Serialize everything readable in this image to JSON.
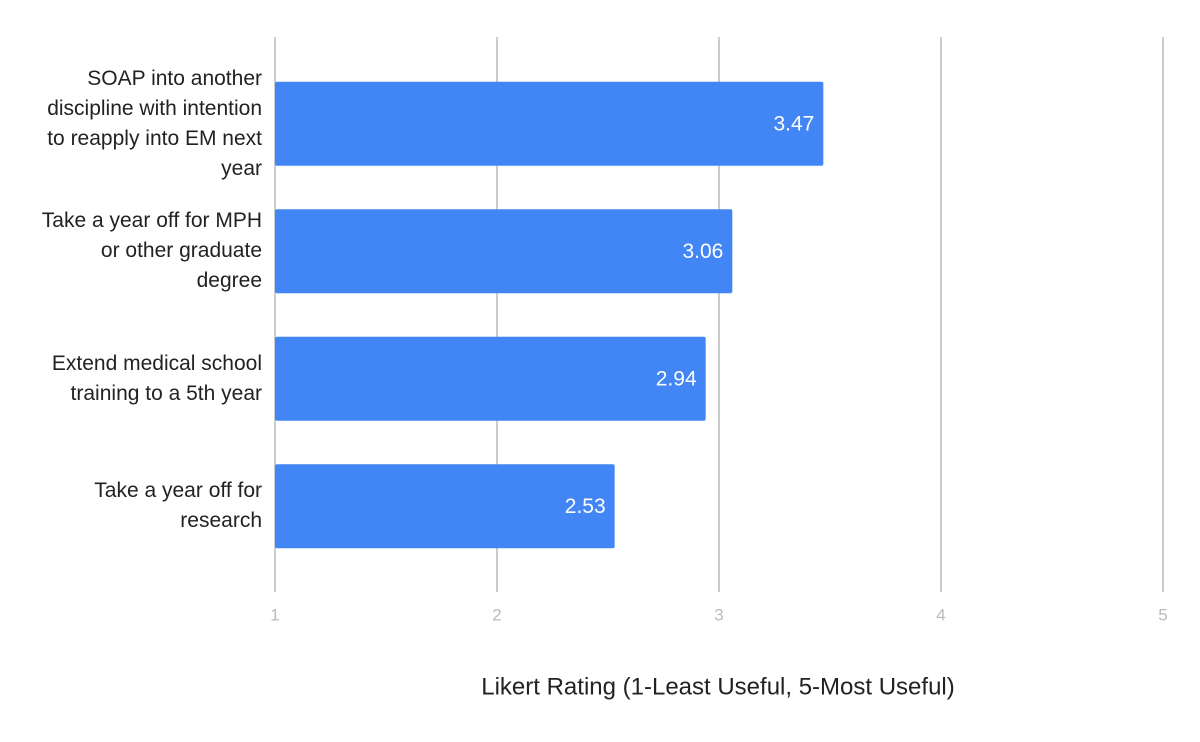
{
  "chart_data": {
    "type": "bar",
    "orientation": "horizontal",
    "x_label": "Likert Rating (1-Least Useful, 5-Most Useful)",
    "categories": [
      "SOAP into another discipline with intention to reapply into EM next year",
      "Take a year off for MPH or other graduate degree",
      "Extend medical school training to a 5th year",
      "Take a year off for research"
    ],
    "values": [
      3.47,
      3.06,
      2.94,
      2.53
    ],
    "color": "#4285f4",
    "xlim": [
      1,
      5
    ],
    "xticks": [
      1,
      2,
      3,
      4,
      5
    ],
    "grid": true
  }
}
